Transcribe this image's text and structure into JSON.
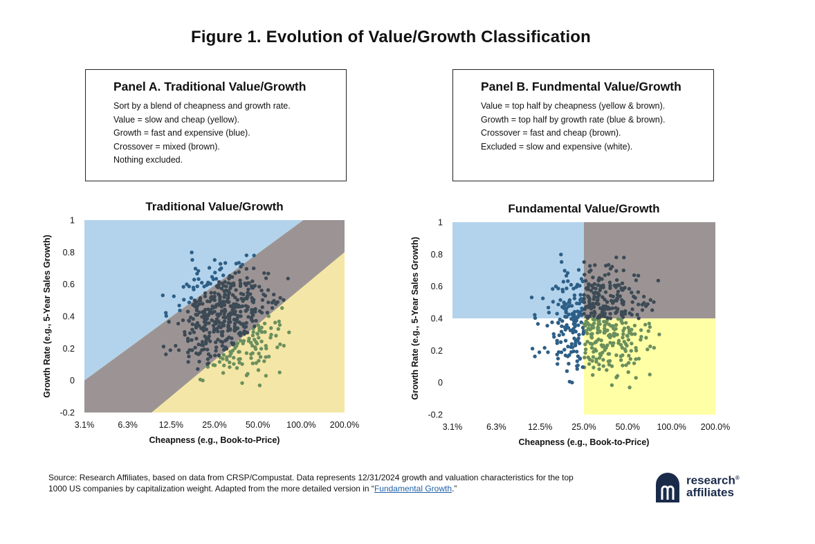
{
  "figure_title": "Figure 1. Evolution of Value/Growth Classification",
  "panel_a": {
    "title": "Panel A. Traditional Value/Growth",
    "lines": [
      "Sort by a blend of cheapness and growth rate.",
      "Value = slow and cheap (yellow).",
      "Growth = fast and expensive (blue).",
      "Crossover = mixed (brown).",
      "Nothing excluded."
    ]
  },
  "panel_b": {
    "title": "Panel B. Fundmental Value/Growth",
    "lines": [
      "Value = top half by cheapness (yellow & brown).",
      "Growth = top half by growth rate (blue & brown).",
      "Crossover = fast and cheap (brown).",
      "Excluded = slow and expensive (white)."
    ]
  },
  "colors": {
    "blue_region": "#b3d3ec",
    "brown_region": "#9c9494",
    "yellow_region_a": "#f4e6a6",
    "yellow_region_b": "#ffffa6",
    "dot_blue": "#2e5f86",
    "dot_green": "#6b8f5e",
    "dot_dark": "#3c4a55"
  },
  "chart_data": [
    {
      "type": "scatter",
      "title": "Traditional Value/Growth",
      "xlabel": "Cheapness (e.g., Book-to-Price)",
      "ylabel": "Growth Rate (e.g., 5-Year Sales Growth)",
      "xscale": "log2",
      "xticks": [
        "3.1%",
        "6.3%",
        "12.5%",
        "25.0%",
        "50.0%",
        "100.0%",
        "200.0%"
      ],
      "xlim": [
        "3.1%",
        "200.0%"
      ],
      "ylim": [
        -0.2,
        1
      ],
      "yticks": [
        "-0.2",
        "0",
        "0.2",
        "0.4",
        "0.6",
        "0.8",
        "1"
      ],
      "regions": [
        {
          "name": "Growth",
          "color": "blue"
        },
        {
          "name": "Crossover",
          "color": "brown"
        },
        {
          "name": "Value",
          "color": "yellow"
        }
      ]
    },
    {
      "type": "scatter",
      "title": "Fundamental Value/Growth",
      "xlabel": "Cheapness (e.g., Book-to-Price)",
      "ylabel": "Growth Rate (e.g., 5-Year Sales Growth)",
      "xscale": "log2",
      "xticks": [
        "3.1%",
        "6.3%",
        "12.5%",
        "25.0%",
        "50.0%",
        "100.0%",
        "200.0%"
      ],
      "xlim": [
        "3.1%",
        "200.0%"
      ],
      "ylim": [
        -0.2,
        1
      ],
      "yticks": [
        "-0.2",
        "0",
        "0.2",
        "0.4",
        "0.6",
        "0.8",
        "1"
      ],
      "cheapness_split": "25.0%",
      "growth_split": 0.4,
      "regions": [
        {
          "name": "Growth",
          "color": "blue"
        },
        {
          "name": "Crossover",
          "color": "brown"
        },
        {
          "name": "Value",
          "color": "yellow"
        },
        {
          "name": "Excluded",
          "color": "white"
        }
      ]
    }
  ],
  "source": {
    "text": "Source: Research Affiliates, based on data from CRSP/Compustat. Data represents 12/31/2024 growth and valuation characteristics for the top 1000 US companies by capitalization weight. Adapted from the more detailed version in “",
    "link": "Fundamental Growth",
    "tail": ".”"
  },
  "logo": {
    "line1": "research",
    "line2": "affiliates",
    "sup": "®"
  }
}
